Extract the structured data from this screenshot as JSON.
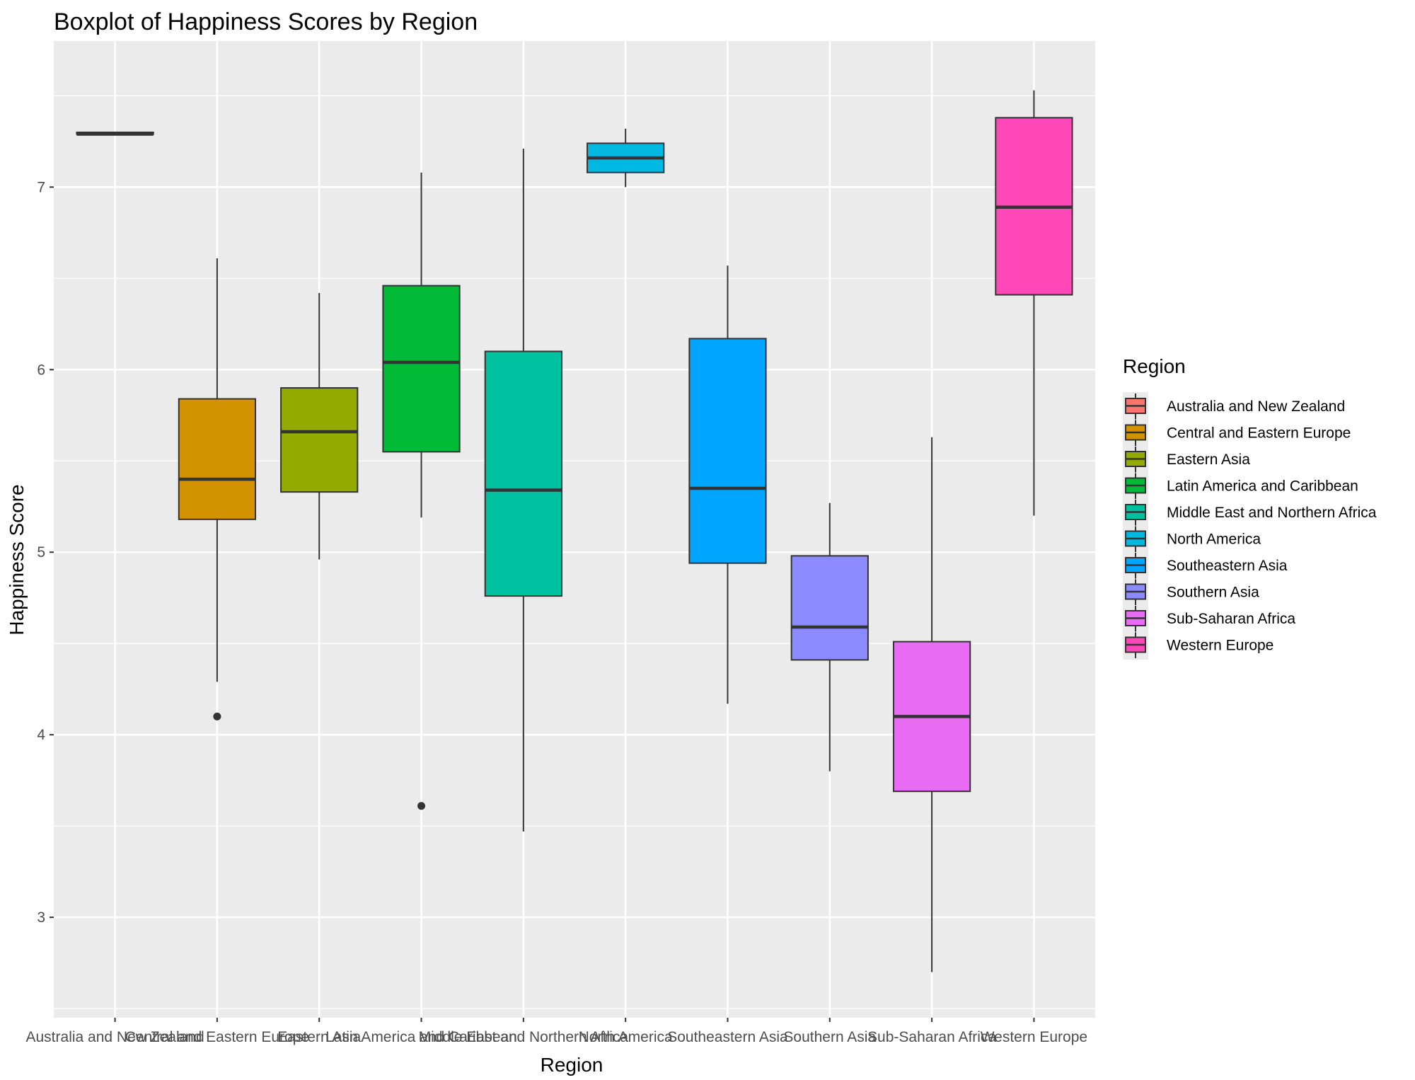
{
  "chart_data": {
    "type": "boxplot",
    "title": "Boxplot of Happiness Scores by Region",
    "xlabel": "Region",
    "ylabel": "Happiness Score",
    "ylim": [
      2.45,
      7.8
    ],
    "yticks": [
      3,
      4,
      5,
      6,
      7
    ],
    "grid": true,
    "legend": {
      "title": "Region",
      "position": "right"
    },
    "categories": [
      "Australia and New Zealand",
      "Central and Eastern Europe",
      "Eastern Asia",
      "Latin America and Caribbean",
      "Middle East and Northern Africa",
      "North America",
      "Southeastern Asia",
      "Southern Asia",
      "Sub-Saharan Africa",
      "Western Europe"
    ],
    "series": [
      {
        "name": "Australia and New Zealand",
        "color": "#F8766D",
        "min": 7.29,
        "q1": 7.29,
        "median": 7.29,
        "q3": 7.3,
        "max": 7.3,
        "outliers": []
      },
      {
        "name": "Central and Eastern Europe",
        "color": "#D39200",
        "min": 4.29,
        "q1": 5.18,
        "median": 5.4,
        "q3": 5.84,
        "max": 6.61,
        "outliers": [
          4.1
        ]
      },
      {
        "name": "Eastern Asia",
        "color": "#93AA00",
        "min": 4.96,
        "q1": 5.33,
        "median": 5.66,
        "q3": 5.9,
        "max": 6.42,
        "outliers": []
      },
      {
        "name": "Latin America and Caribbean",
        "color": "#00BA38",
        "min": 5.19,
        "q1": 5.55,
        "median": 6.04,
        "q3": 6.46,
        "max": 7.08,
        "outliers": [
          3.61
        ]
      },
      {
        "name": "Middle East and Northern Africa",
        "color": "#00C19F",
        "min": 3.47,
        "q1": 4.76,
        "median": 5.34,
        "q3": 6.1,
        "max": 7.21,
        "outliers": []
      },
      {
        "name": "North America",
        "color": "#00B9E3",
        "min": 7.0,
        "q1": 7.08,
        "median": 7.16,
        "q3": 7.24,
        "max": 7.32,
        "outliers": []
      },
      {
        "name": "Southeastern Asia",
        "color": "#00A5FF",
        "min": 4.17,
        "q1": 4.94,
        "median": 5.35,
        "q3": 6.17,
        "max": 6.57,
        "outliers": []
      },
      {
        "name": "Southern Asia",
        "color": "#8B8BFF",
        "min": 3.8,
        "q1": 4.41,
        "median": 4.59,
        "q3": 4.98,
        "max": 5.27,
        "outliers": []
      },
      {
        "name": "Sub-Saharan Africa",
        "color": "#E76BF3",
        "min": 2.7,
        "q1": 3.69,
        "median": 4.1,
        "q3": 4.51,
        "max": 5.63,
        "outliers": []
      },
      {
        "name": "Western Europe",
        "color": "#FF48B8",
        "min": 5.2,
        "q1": 6.41,
        "median": 6.89,
        "q3": 7.38,
        "max": 7.53,
        "outliers": []
      }
    ]
  }
}
